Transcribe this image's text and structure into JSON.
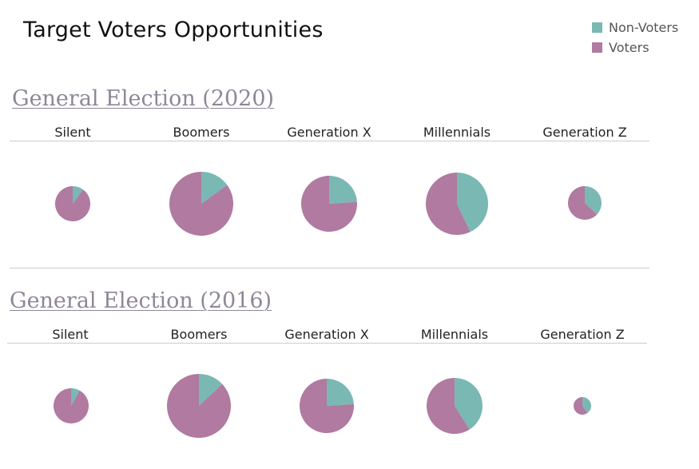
{
  "title": "Target Voters Opportunities",
  "legend": [
    {
      "label": "Non-Voters",
      "color": "#7ab8b4"
    },
    {
      "label": "Voters",
      "color": "#b07aa1"
    }
  ],
  "chart_data": [
    {
      "type": "pie",
      "title": "General Election (2020)",
      "categories": [
        "Silent",
        "Boomers",
        "Generation X",
        "Millennials",
        "Generation Z"
      ],
      "series": [
        {
          "name": "Non-Voters",
          "values": [
            10,
            15,
            24,
            43,
            37
          ]
        },
        {
          "name": "Voters",
          "values": [
            90,
            85,
            76,
            57,
            63
          ]
        }
      ]
    },
    {
      "type": "pie",
      "title": "General Election (2016)",
      "categories": [
        "Silent",
        "Boomers",
        "Generation X",
        "Millennials",
        "Generation Z"
      ],
      "series": [
        {
          "name": "Non-Voters",
          "values": [
            8,
            13,
            24,
            41,
            40
          ]
        },
        {
          "name": "Voters",
          "values": [
            92,
            87,
            76,
            59,
            60
          ]
        }
      ]
    }
  ]
}
